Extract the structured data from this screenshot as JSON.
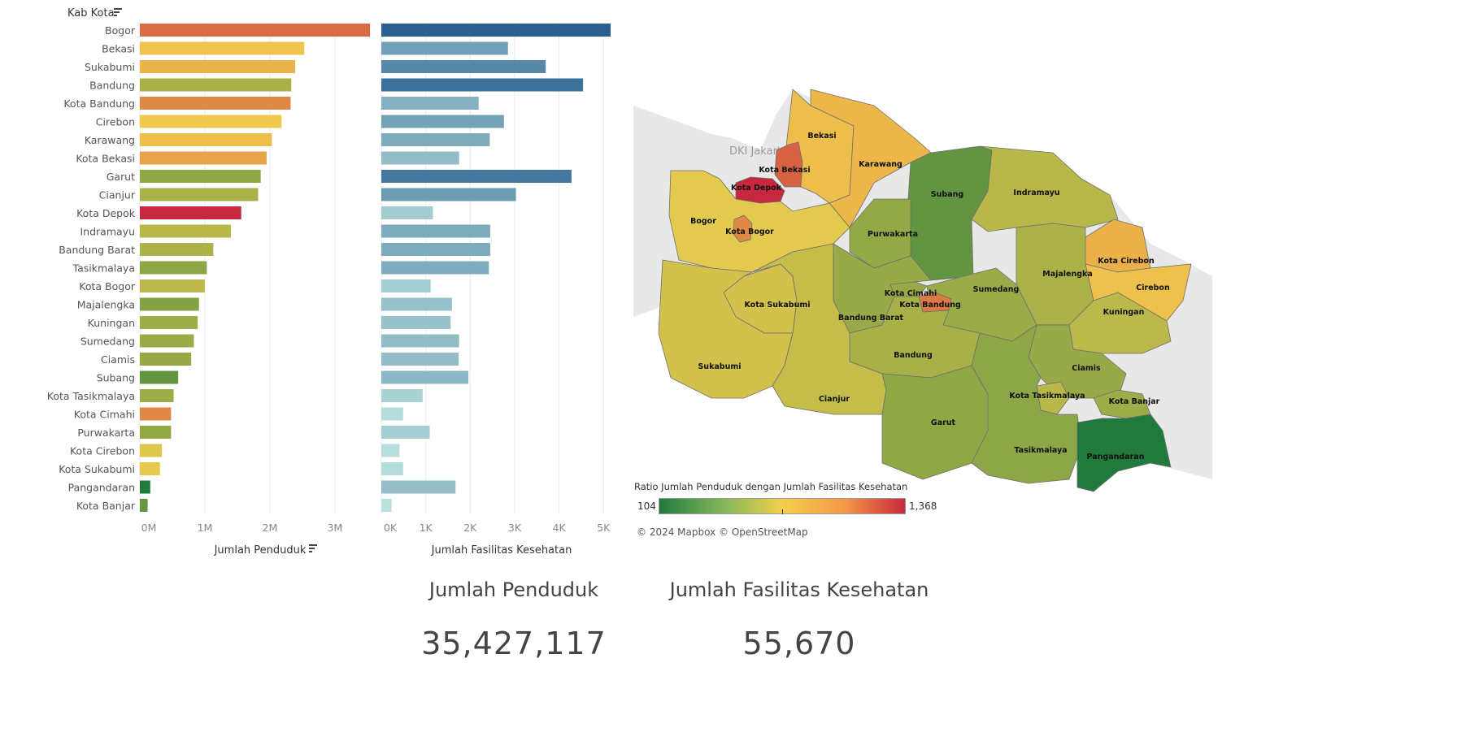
{
  "bar_panel": {
    "dimension_label": "Kab Kota",
    "left_axis_label": "Jumlah Penduduk",
    "right_axis_label": "Jumlah Fasilitas Kesehatan"
  },
  "chart_data": [
    {
      "type": "bar",
      "orientation": "horizontal",
      "xlabel": "Jumlah Penduduk",
      "ylabel": "Kab Kota",
      "categories": [
        "Bogor",
        "Bekasi",
        "Sukabumi",
        "Bandung",
        "Kota Bandung",
        "Cirebon",
        "Karawang",
        "Kota Bekasi",
        "Garut",
        "Cianjur",
        "Kota Depok",
        "Indramayu",
        "Bandung Barat",
        "Tasikmalaya",
        "Kota Bogor",
        "Majalengka",
        "Kuningan",
        "Sumedang",
        "Ciamis",
        "Subang",
        "Kota Tasikmalaya",
        "Kota Cimahi",
        "Purwakarta",
        "Kota Cirebon",
        "Kota Sukabumi",
        "Pangandaran",
        "Kota Banjar"
      ],
      "values": [
        3540000,
        2530000,
        2390000,
        2330000,
        2320000,
        2180000,
        2030000,
        1950000,
        1860000,
        1820000,
        1560000,
        1400000,
        1130000,
        1030000,
        1000000,
        910000,
        890000,
        830000,
        790000,
        590000,
        520000,
        480000,
        480000,
        340000,
        310000,
        160000,
        120000
      ],
      "xlim": [
        0,
        3540000
      ],
      "ticks": [
        0,
        1000000,
        2000000,
        3000000
      ],
      "tick_labels": [
        "0M",
        "1M",
        "2M",
        "3M"
      ],
      "color_scale": {
        "min": 104,
        "max": 1368,
        "low": "#217a3d",
        "mid": "#f2cf4e",
        "high": "#c8283d"
      },
      "ratio": [
        1120,
        780,
        840,
        510,
        1000,
        760,
        800,
        900,
        440,
        520,
        1368,
        560,
        520,
        430,
        570,
        400,
        480,
        470,
        460,
        300,
        480,
        1000,
        450,
        680,
        700,
        104,
        320
      ],
      "grid": true
    },
    {
      "type": "bar",
      "orientation": "horizontal",
      "xlabel": "Jumlah Fasilitas Kesehatan",
      "categories": [
        "Bogor",
        "Bekasi",
        "Sukabumi",
        "Bandung",
        "Kota Bandung",
        "Cirebon",
        "Karawang",
        "Kota Bekasi",
        "Garut",
        "Cianjur",
        "Kota Depok",
        "Indramayu",
        "Bandung Barat",
        "Tasikmalaya",
        "Kota Bogor",
        "Majalengka",
        "Kuningan",
        "Sumedang",
        "Ciamis",
        "Subang",
        "Kota Tasikmalaya",
        "Kota Cimahi",
        "Purwakarta",
        "Kota Cirebon",
        "Kota Sukabumi",
        "Pangandaran",
        "Kota Banjar"
      ],
      "values": [
        5160,
        2850,
        3700,
        4540,
        2190,
        2760,
        2440,
        1750,
        4280,
        3030,
        1160,
        2450,
        2450,
        2420,
        1110,
        1590,
        1560,
        1750,
        1740,
        1960,
        930,
        490,
        1090,
        410,
        490,
        1670,
        230
      ],
      "xlim": [
        0,
        5160
      ],
      "ticks": [
        0,
        1000,
        2000,
        3000,
        4000,
        5000
      ],
      "tick_labels": [
        "0K",
        "1K",
        "2K",
        "3K",
        "4K",
        "5K"
      ],
      "color_scale": {
        "min": 0,
        "max": 5160,
        "low": "#bfe6e0",
        "high": "#2a5f8f"
      },
      "grid": true
    }
  ],
  "map": {
    "region_labels": [
      {
        "name": "Bekasi",
        "ratio": 800
      },
      {
        "name": "Karawang",
        "ratio": 830
      },
      {
        "name": "Kota Bekasi",
        "ratio": 1150
      },
      {
        "name": "Kota Depok",
        "ratio": 1368
      },
      {
        "name": "Subang",
        "ratio": 300
      },
      {
        "name": "Indramayu",
        "ratio": 560
      },
      {
        "name": "Bogor",
        "ratio": 690
      },
      {
        "name": "Kota Bogor",
        "ratio": 1000
      },
      {
        "name": "Purwakarta",
        "ratio": 450
      },
      {
        "name": "Kota Cirebon",
        "ratio": 850
      },
      {
        "name": "Majalengka",
        "ratio": 520
      },
      {
        "name": "Cirebon",
        "ratio": 790
      },
      {
        "name": "Kota Cimahi",
        "ratio": 460
      },
      {
        "name": "Kota Sukabumi",
        "ratio": 640
      },
      {
        "name": "Sumedang",
        "ratio": 470
      },
      {
        "name": "Kota Bandung",
        "ratio": 1060
      },
      {
        "name": "Bandung Barat",
        "ratio": 460
      },
      {
        "name": "Kuningan",
        "ratio": 570
      },
      {
        "name": "Bandung",
        "ratio": 510
      },
      {
        "name": "Ciamis",
        "ratio": 460
      },
      {
        "name": "Sukabumi",
        "ratio": 640
      },
      {
        "name": "Kota Tasikmalaya",
        "ratio": 560
      },
      {
        "name": "Kota Banjar",
        "ratio": 480
      },
      {
        "name": "Cianjur",
        "ratio": 600
      },
      {
        "name": "Garut",
        "ratio": 440
      },
      {
        "name": "Tasikmalaya",
        "ratio": 430
      },
      {
        "name": "Pangandaran",
        "ratio": 104
      }
    ],
    "basemap_label": "DKI Jakarta",
    "attribution": "© 2024 Mapbox  © OpenStreetMap",
    "legend": {
      "title": "Ratio Jumlah Penduduk dengan Jumlah Fasilitas Kesehatan",
      "min": "104",
      "max": "1,368"
    }
  },
  "kpis": [
    {
      "label": "Jumlah Penduduk",
      "value": "35,427,117"
    },
    {
      "label": "Jumlah Fasilitas Kesehatan",
      "value": "55,670"
    }
  ]
}
